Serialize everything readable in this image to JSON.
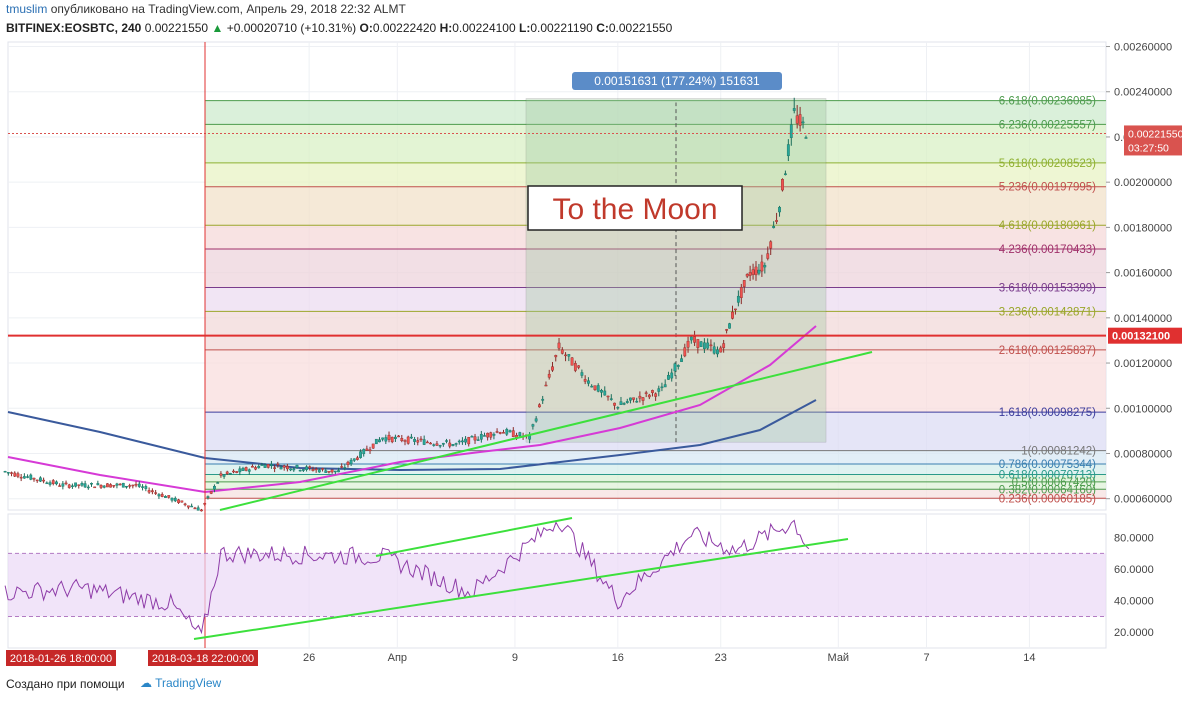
{
  "header": {
    "user": "tmuslim",
    "published": "опубликовано на TradingView.com, Апрель 29, 2018 22:32 ALMT",
    "symbol": "BITFINEX:EOSBTC, 240",
    "last": "0.00221550",
    "change": "+0.00020710 (+10.31%)",
    "o_label": "O:",
    "o": "0.00222420",
    "h_label": "H:",
    "h": "0.00224100",
    "l_label": "L:",
    "l": "0.00221190",
    "c_label": "C:",
    "c": "0.00221550"
  },
  "footer": {
    "credit": "Создано при помощи",
    "brand": "TradingView"
  },
  "chart_data": [
    {
      "type": "candlestick",
      "title": "BITFINEX:EOSBTC, 240",
      "ylim": [
        0.00055,
        0.00262
      ],
      "price_ticks": [
        "0.00260000",
        "0.00240000",
        "0.00220000",
        "0.00200000",
        "0.00180000",
        "0.00160000",
        "0.00140000",
        "0.00120000",
        "0.00100000",
        "0.00080000",
        "0.00060000"
      ],
      "time_ticks": [
        "26",
        "Апр",
        "9",
        "16",
        "23",
        "Май",
        "7",
        "14"
      ],
      "time_labels_highlighted": [
        "2018-01-26 18:00:00",
        "2018-03-18 22:00:00"
      ],
      "price_path_approx": [
        {
          "t": "2018-01-26",
          "p": 0.00072
        },
        {
          "t": "2018-02-10",
          "p": 0.00066
        },
        {
          "t": "2018-03-01",
          "p": 0.00066
        },
        {
          "t": "2018-03-18",
          "p": 0.00055
        },
        {
          "t": "2018-03-20",
          "p": 0.0007
        },
        {
          "t": "2018-03-23",
          "p": 0.00075
        },
        {
          "t": "2018-03-28",
          "p": 0.00072
        },
        {
          "t": "2018-03-31",
          "p": 0.00087
        },
        {
          "t": "2018-04-05",
          "p": 0.00084
        },
        {
          "t": "2018-04-08",
          "p": 0.0009
        },
        {
          "t": "2018-04-10",
          "p": 0.00087
        },
        {
          "t": "2018-04-12",
          "p": 0.00127
        },
        {
          "t": "2018-04-14",
          "p": 0.00112
        },
        {
          "t": "2018-04-16",
          "p": 0.00101
        },
        {
          "t": "2018-04-19",
          "p": 0.00108
        },
        {
          "t": "2018-04-21",
          "p": 0.0013
        },
        {
          "t": "2018-04-23",
          "p": 0.00125
        },
        {
          "t": "2018-04-24",
          "p": 0.00145
        },
        {
          "t": "2018-04-25",
          "p": 0.0016
        },
        {
          "t": "2018-04-26",
          "p": 0.00163
        },
        {
          "t": "2018-04-27",
          "p": 0.0019
        },
        {
          "t": "2018-04-28",
          "p": 0.0023
        },
        {
          "t": "2018-04-29",
          "p": 0.00221
        }
      ],
      "fib_levels": [
        {
          "label": "6.618(0.00236085)",
          "value": 0.00236085,
          "color": "#4c9b4c"
        },
        {
          "label": "6.236(0.00225557)",
          "value": 0.00225557,
          "color": "#4c9b4c"
        },
        {
          "label": "5.618(0.00208523)",
          "value": 0.00208523,
          "color": "#8fb030"
        },
        {
          "label": "5.236(0.00197995)",
          "value": 0.00197995,
          "color": "#c0504d"
        },
        {
          "label": "4.618(0.00180961)",
          "value": 0.00180961,
          "color": "#9aa62a"
        },
        {
          "label": "4.236(0.00170433)",
          "value": 0.00170433,
          "color": "#a0306a"
        },
        {
          "label": "3.618(0.00153399)",
          "value": 0.00153399,
          "color": "#7a3c8c"
        },
        {
          "label": "3.236(0.00142871)",
          "value": 0.00142871,
          "color": "#9aa62a"
        },
        {
          "label": "2.618(0.00125837)",
          "value": 0.00125837,
          "color": "#c0504d"
        },
        {
          "label": "1.618(0.00098275)",
          "value": 0.00098275,
          "color": "#3c3c9c"
        },
        {
          "label": "1(0.00081242)",
          "value": 0.00081242,
          "color": "#777777"
        },
        {
          "label": "0.786(0.00075344)",
          "value": 0.00075344,
          "color": "#3a7fb0"
        },
        {
          "label": "0.618(0.00070713)",
          "value": 0.00070713,
          "color": "#2a9a8a"
        },
        {
          "label": "0.5(0.00067420)",
          "value": 0.0006742,
          "color": "#4c9b4c"
        },
        {
          "label": "0.382(0.00064160)",
          "value": 0.0006416,
          "color": "#4c9b4c"
        },
        {
          "label": "0.236(0.00060185)",
          "value": 0.00060185,
          "color": "#c0504d"
        }
      ],
      "horizontal_line": {
        "value": 0.001321,
        "label": "0.00132100",
        "color": "#e03030"
      },
      "last_price": {
        "value": 0.0022155,
        "label": "0.00221550",
        "countdown": "03:27:50",
        "color": "#d9534f"
      },
      "measure": {
        "label": "0.00151631 (177.24%) 151631",
        "from": 0.00085,
        "to": 0.00237
      },
      "annotation": "To the Moon"
    },
    {
      "type": "line",
      "title": "",
      "ylim": [
        10,
        95
      ],
      "ticks": [
        "80.0000",
        "60.0000",
        "40.0000",
        "20.0000"
      ],
      "bands": [
        30,
        70
      ],
      "values_approx": [
        {
          "t": "2018-01-26",
          "v": 45
        },
        {
          "t": "2018-02-15",
          "v": 48
        },
        {
          "t": "2018-03-10",
          "v": 38
        },
        {
          "t": "2018-03-18",
          "v": 17
        },
        {
          "t": "2018-03-20",
          "v": 70
        },
        {
          "t": "2018-03-31",
          "v": 68
        },
        {
          "t": "2018-04-06",
          "v": 45
        },
        {
          "t": "2018-04-12",
          "v": 92
        },
        {
          "t": "2018-04-16",
          "v": 40
        },
        {
          "t": "2018-04-21",
          "v": 82
        },
        {
          "t": "2018-04-24",
          "v": 72
        },
        {
          "t": "2018-04-28",
          "v": 90
        },
        {
          "t": "2018-04-29",
          "v": 73
        }
      ]
    }
  ]
}
